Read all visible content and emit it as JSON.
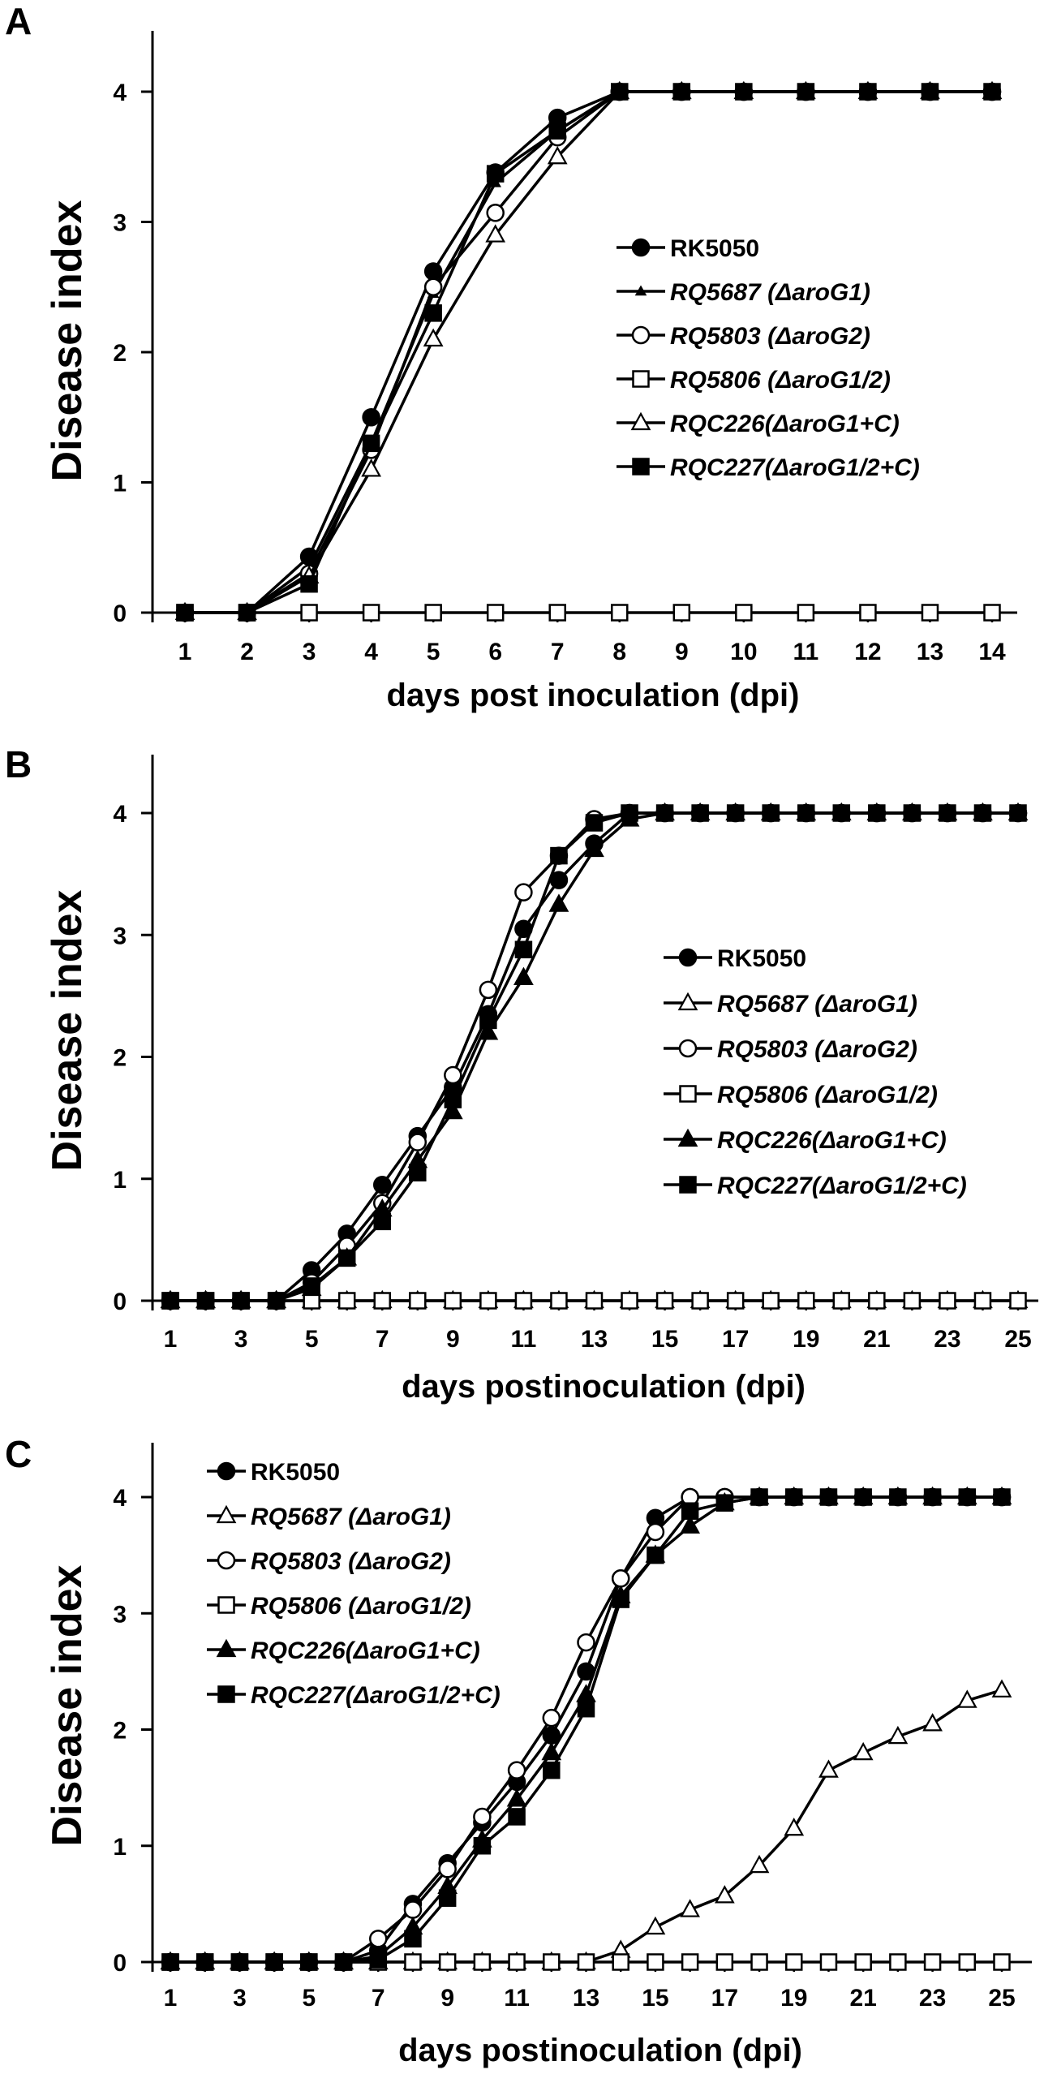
{
  "chart_data": [
    {
      "panel": "A",
      "type": "line",
      "ylabel": "Disease index",
      "xlabel": "days post inoculation (dpi)",
      "x": [
        1,
        2,
        3,
        4,
        5,
        6,
        7,
        8,
        9,
        10,
        11,
        12,
        13,
        14
      ],
      "x_tick_labels": [
        "1",
        "2",
        "3",
        "4",
        "5",
        "6",
        "7",
        "8",
        "9",
        "10",
        "11",
        "12",
        "13",
        "14"
      ],
      "ylim": [
        0,
        4.5
      ],
      "y_ticks": [
        0,
        1,
        2,
        3,
        4
      ],
      "legend_position": "center-right",
      "series": [
        {
          "name": "RK5050",
          "marker": "circle-filled",
          "values": [
            0,
            0,
            0.43,
            1.5,
            2.62,
            3.38,
            3.8,
            4,
            4,
            4,
            4,
            4,
            4,
            4
          ]
        },
        {
          "name": "RQ5687 (ΔaroG1)",
          "marker": "small-triangle-filled",
          "values": [
            0,
            0,
            0.35,
            1.3,
            2.45,
            3.3,
            3.7,
            4,
            4,
            4,
            4,
            4,
            4,
            4
          ]
        },
        {
          "name": "RQ5803 (ΔaroG2)",
          "marker": "circle-open",
          "values": [
            0,
            0,
            0.3,
            1.25,
            2.5,
            3.07,
            3.65,
            4,
            4,
            4,
            4,
            4,
            4,
            4
          ]
        },
        {
          "name": "RQ5806 (ΔaroG1/2)",
          "marker": "square-open",
          "values": [
            0,
            0,
            0,
            0,
            0,
            0,
            0,
            0,
            0,
            0,
            0,
            0,
            0,
            0
          ]
        },
        {
          "name": "RQC226(ΔaroG1+C)",
          "marker": "triangle-open",
          "values": [
            0,
            0,
            0.28,
            1.1,
            2.1,
            2.9,
            3.5,
            4,
            4,
            4,
            4,
            4,
            4,
            4
          ]
        },
        {
          "name": "RQC227(ΔaroG1/2+C)",
          "marker": "square-filled",
          "values": [
            0,
            0,
            0.22,
            1.3,
            2.3,
            3.37,
            3.7,
            4,
            4,
            4,
            4,
            4,
            4,
            4
          ]
        }
      ]
    },
    {
      "panel": "B",
      "type": "line",
      "ylabel": "Disease index",
      "xlabel": "days postinoculation (dpi)",
      "x": [
        1,
        2,
        3,
        4,
        5,
        6,
        7,
        8,
        9,
        10,
        11,
        12,
        13,
        14,
        15,
        16,
        17,
        18,
        19,
        20,
        21,
        22,
        23,
        24,
        25
      ],
      "x_tick_labels": [
        "1",
        "3",
        "5",
        "7",
        "9",
        "11",
        "13",
        "15",
        "17",
        "19",
        "21",
        "23",
        "25"
      ],
      "ylim": [
        0,
        4.5
      ],
      "y_ticks": [
        0,
        1,
        2,
        3,
        4
      ],
      "legend_position": "center-right",
      "series": [
        {
          "name": "RK5050",
          "marker": "circle-filled",
          "values": [
            0,
            0,
            0,
            0,
            0.25,
            0.55,
            0.95,
            1.35,
            1.75,
            2.35,
            3.05,
            3.45,
            3.75,
            4,
            4,
            4,
            4,
            4,
            4,
            4,
            4,
            4,
            4,
            4,
            4
          ]
        },
        {
          "name": "RQ5687 (ΔaroG1)",
          "marker": "triangle-open",
          "values": [
            0,
            0,
            0,
            0,
            0,
            0,
            0,
            0,
            0,
            0,
            0,
            0,
            0,
            0,
            0,
            0,
            0,
            0,
            0,
            0,
            0,
            0,
            0,
            0,
            0
          ]
        },
        {
          "name": "RQ5803 (ΔaroG2)",
          "marker": "circle-open",
          "values": [
            0,
            0,
            0,
            0,
            0.15,
            0.45,
            0.8,
            1.3,
            1.85,
            2.55,
            3.35,
            3.65,
            3.95,
            4,
            4,
            4,
            4,
            4,
            4,
            4,
            4,
            4,
            4,
            4,
            4
          ]
        },
        {
          "name": "RQ5806 (ΔaroG1/2)",
          "marker": "square-open",
          "values": [
            0,
            0,
            0,
            0,
            0,
            0,
            0,
            0,
            0,
            0,
            0,
            0,
            0,
            0,
            0,
            0,
            0,
            0,
            0,
            0,
            0,
            0,
            0,
            0,
            0
          ]
        },
        {
          "name": "RQC226(ΔaroG1+C)",
          "marker": "triangle-filled",
          "values": [
            0,
            0,
            0,
            0,
            0.1,
            0.35,
            0.75,
            1.15,
            1.55,
            2.2,
            2.65,
            3.25,
            3.7,
            3.95,
            4,
            4,
            4,
            4,
            4,
            4,
            4,
            4,
            4,
            4,
            4
          ]
        },
        {
          "name": "RQC227(ΔaroG1/2+C)",
          "marker": "square-filled",
          "values": [
            0,
            0,
            0,
            0,
            0.12,
            0.35,
            0.65,
            1.05,
            1.65,
            2.3,
            2.88,
            3.65,
            3.92,
            4,
            4,
            4,
            4,
            4,
            4,
            4,
            4,
            4,
            4,
            4,
            4
          ]
        }
      ]
    },
    {
      "panel": "C",
      "type": "line",
      "ylabel": "Disease index",
      "xlabel": "days postinoculation (dpi)",
      "x": [
        1,
        2,
        3,
        4,
        5,
        6,
        7,
        8,
        9,
        10,
        11,
        12,
        13,
        14,
        15,
        16,
        17,
        18,
        19,
        20,
        21,
        22,
        23,
        24,
        25
      ],
      "x_tick_labels": [
        "1",
        "3",
        "5",
        "7",
        "9",
        "11",
        "13",
        "15",
        "17",
        "19",
        "21",
        "23",
        "25"
      ],
      "ylim": [
        0,
        4.5
      ],
      "y_ticks": [
        0,
        1,
        2,
        3,
        4
      ],
      "legend_position": "top-left",
      "series": [
        {
          "name": "RK5050",
          "marker": "circle-filled",
          "values": [
            0,
            0,
            0,
            0,
            0,
            0,
            0.1,
            0.5,
            0.85,
            1.2,
            1.55,
            1.95,
            2.5,
            3.3,
            3.82,
            4,
            4,
            4,
            4,
            4,
            4,
            4,
            4,
            4,
            4
          ]
        },
        {
          "name": "RQ5687 (ΔaroG1)",
          "marker": "triangle-open",
          "values": [
            0,
            0,
            0,
            0,
            0,
            0,
            0,
            0,
            0,
            0,
            0,
            0,
            0,
            0.1,
            0.3,
            0.45,
            0.57,
            0.83,
            1.15,
            1.65,
            1.8,
            1.94,
            2.05,
            2.25,
            2.34
          ]
        },
        {
          "name": "RQ5803 (ΔaroG2)",
          "marker": "circle-open",
          "values": [
            0,
            0,
            0,
            0,
            0,
            0,
            0.2,
            0.45,
            0.8,
            1.25,
            1.65,
            2.1,
            2.75,
            3.3,
            3.7,
            4,
            4,
            4,
            4,
            4,
            4,
            4,
            4,
            4,
            4
          ]
        },
        {
          "name": "RQ5806 (ΔaroG1/2)",
          "marker": "square-open",
          "values": [
            0,
            0,
            0,
            0,
            0,
            0,
            0,
            0,
            0,
            0,
            0,
            0,
            0,
            0,
            0,
            0,
            0,
            0,
            0,
            0,
            0,
            0,
            0,
            0,
            0
          ]
        },
        {
          "name": "RQC226(ΔaroG1+C)",
          "marker": "triangle-filled",
          "values": [
            0,
            0,
            0,
            0,
            0,
            0,
            0.05,
            0.3,
            0.65,
            1.05,
            1.4,
            1.8,
            2.3,
            3.15,
            3.5,
            3.75,
            3.95,
            4,
            4,
            4,
            4,
            4,
            4,
            4,
            4
          ]
        },
        {
          "name": "RQC227(ΔaroG1/2+C)",
          "marker": "square-filled",
          "values": [
            0,
            0,
            0,
            0,
            0,
            0,
            0.02,
            0.2,
            0.55,
            1.0,
            1.25,
            1.65,
            2.18,
            3.12,
            3.5,
            3.88,
            3.95,
            4,
            4,
            4,
            4,
            4,
            4,
            4,
            4
          ]
        }
      ]
    }
  ]
}
